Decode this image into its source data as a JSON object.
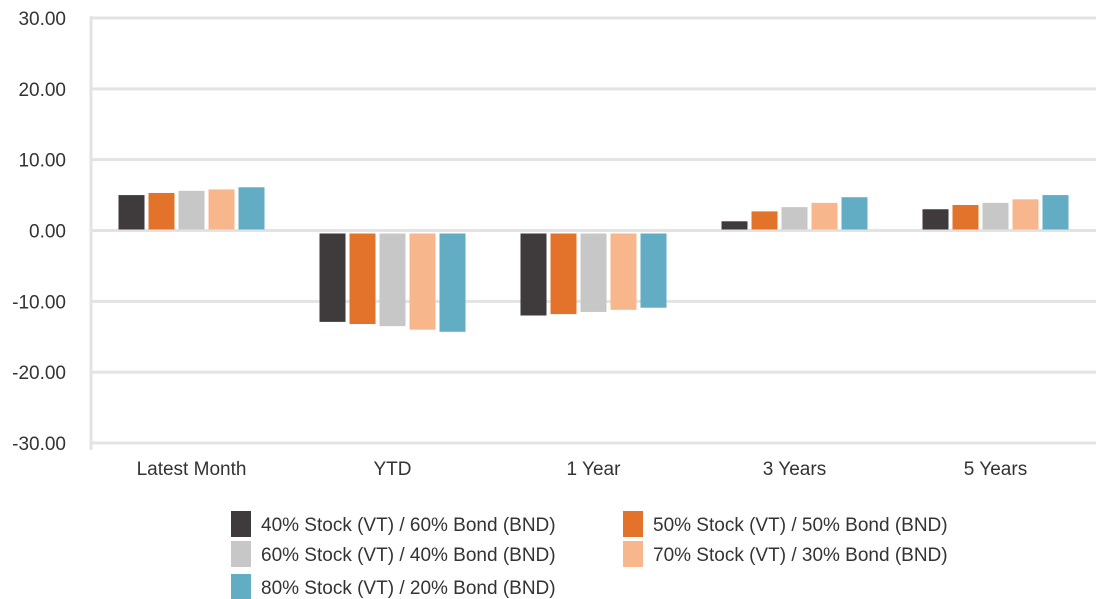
{
  "chart_data": {
    "type": "bar",
    "categories": [
      "Latest Month",
      "YTD",
      "1 Year",
      "3 Years",
      "5 Years"
    ],
    "series": [
      {
        "name": "40% Stock (VT) / 60% Bond (BND)",
        "color": "#3f3a3c",
        "values": [
          5.0,
          -12.9,
          -12.0,
          1.3,
          3.0
        ]
      },
      {
        "name": "50% Stock (VT) / 50% Bond (BND)",
        "color": "#e3732a",
        "values": [
          5.3,
          -13.2,
          -11.8,
          2.7,
          3.6
        ]
      },
      {
        "name": "60% Stock (VT) / 40% Bond (BND)",
        "color": "#c8c7c8",
        "values": [
          5.6,
          -13.5,
          -11.5,
          3.3,
          3.9
        ]
      },
      {
        "name": "70% Stock (VT) / 30% Bond (BND)",
        "color": "#f8b68c",
        "values": [
          5.8,
          -14.0,
          -11.2,
          3.9,
          4.4
        ]
      },
      {
        "name": "80% Stock (VT) / 20% Bond (BND)",
        "color": "#62acc4",
        "values": [
          6.1,
          -14.3,
          -10.9,
          4.7,
          5.0
        ]
      }
    ],
    "yticks": [
      "30.00",
      "20.00",
      "10.00",
      "0.00",
      "-10.00",
      "-20.00",
      "-30.00"
    ],
    "ylim": [
      -30,
      30
    ],
    "grid": true,
    "legend_position": "bottom"
  }
}
